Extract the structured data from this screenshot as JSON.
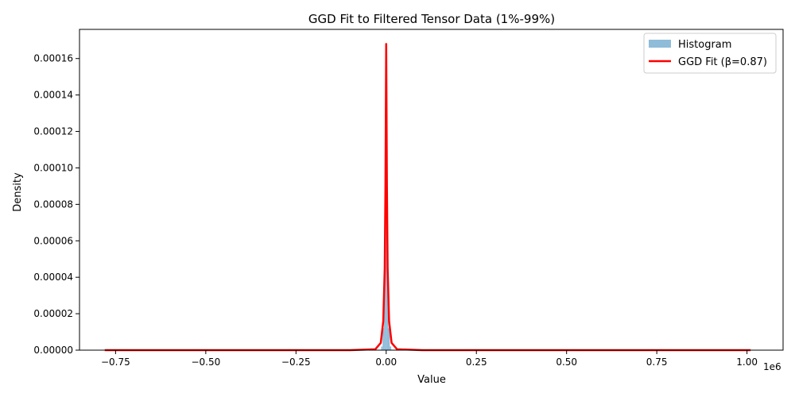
{
  "chart_data": {
    "type": "line",
    "title": "GGD Fit to Filtered Tensor Data (1%-99%)",
    "xlabel": "Value",
    "ylabel": "Density",
    "x_offset_label": "1e6",
    "xlim": [
      -0.85,
      1.1
    ],
    "ylim": [
      0,
      0.000176
    ],
    "x_ticks": [
      -0.75,
      -0.5,
      -0.25,
      0.0,
      0.25,
      0.5,
      0.75,
      1.0
    ],
    "x_tick_labels": [
      "−0.75",
      "−0.50",
      "−0.25",
      "0.00",
      "0.25",
      "0.50",
      "0.75",
      "1.00"
    ],
    "y_ticks": [
      0,
      2e-05,
      4e-05,
      6e-05,
      8e-05,
      0.0001,
      0.00012,
      0.00014,
      0.00016
    ],
    "y_tick_labels": [
      "0.00000",
      "0.00002",
      "0.00004",
      "0.00006",
      "0.00008",
      "0.00010",
      "0.00012",
      "0.00014",
      "0.00016"
    ],
    "legend_position": "top-right",
    "grid": false,
    "series": [
      {
        "name": "Histogram",
        "kind": "histogram",
        "color": "#8fbcd9",
        "x": [
          -0.012,
          -0.008,
          -0.004,
          0.0,
          0.004,
          0.008,
          0.012
        ],
        "values": [
          2e-06,
          1.2e-05,
          6e-05,
          0.000155,
          6e-05,
          1.2e-05,
          2e-06
        ]
      },
      {
        "name": "GGD Fit (β=0.87)",
        "kind": "line",
        "color": "#ff0000",
        "x": [
          -0.78,
          -0.1,
          -0.03,
          -0.015,
          -0.008,
          -0.004,
          -0.002,
          0.0,
          0.002,
          0.004,
          0.008,
          0.015,
          0.03,
          0.1,
          1.01
        ],
        "values": [
          0,
          0,
          5e-07,
          4e-06,
          1.6e-05,
          4.5e-05,
          9e-05,
          0.000168,
          9e-05,
          4.5e-05,
          1.6e-05,
          4e-06,
          5e-07,
          0,
          0
        ]
      }
    ]
  }
}
